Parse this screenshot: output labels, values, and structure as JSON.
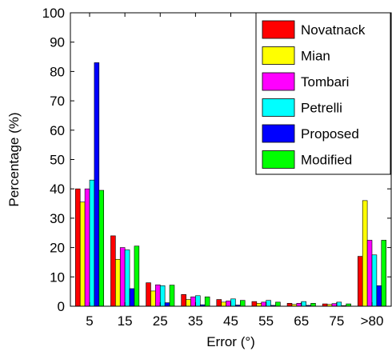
{
  "chart_data": {
    "type": "bar",
    "title": "",
    "xlabel": "Error (°)",
    "ylabel": "Percentage (%)",
    "ylim": [
      0,
      100
    ],
    "yticks": [
      0,
      10,
      20,
      30,
      40,
      50,
      60,
      70,
      80,
      90,
      100
    ],
    "grid": false,
    "legend_position": "top-right",
    "categories": [
      "5",
      "15",
      "25",
      "35",
      "45",
      "55",
      "65",
      "75",
      ">80"
    ],
    "series": [
      {
        "name": "Novatnack",
        "color": "#ff0000",
        "values": [
          40,
          24,
          8,
          4,
          2.3,
          1.6,
          1.0,
          0.8,
          17
        ]
      },
      {
        "name": "Mian",
        "color": "#ffff00",
        "values": [
          35.5,
          16,
          5.2,
          2.3,
          1.4,
          1.0,
          0.6,
          0.6,
          36
        ]
      },
      {
        "name": "Tombari",
        "color": "#ff00ff",
        "values": [
          40,
          20,
          7.3,
          3.2,
          1.8,
          1.4,
          1.0,
          0.9,
          22.5
        ]
      },
      {
        "name": "Petrelli",
        "color": "#00ffff",
        "values": [
          43,
          19.2,
          7.0,
          3.6,
          2.5,
          2.0,
          1.6,
          1.4,
          17.5
        ]
      },
      {
        "name": "Proposed",
        "color": "#0000ff",
        "values": [
          83,
          6,
          1.2,
          0.5,
          0.4,
          0.3,
          0.3,
          0.2,
          7
        ]
      },
      {
        "name": "Modified",
        "color": "#00ff00",
        "values": [
          39.5,
          20.5,
          7.2,
          3.2,
          2.0,
          1.4,
          1.0,
          0.8,
          22.5
        ]
      }
    ]
  }
}
